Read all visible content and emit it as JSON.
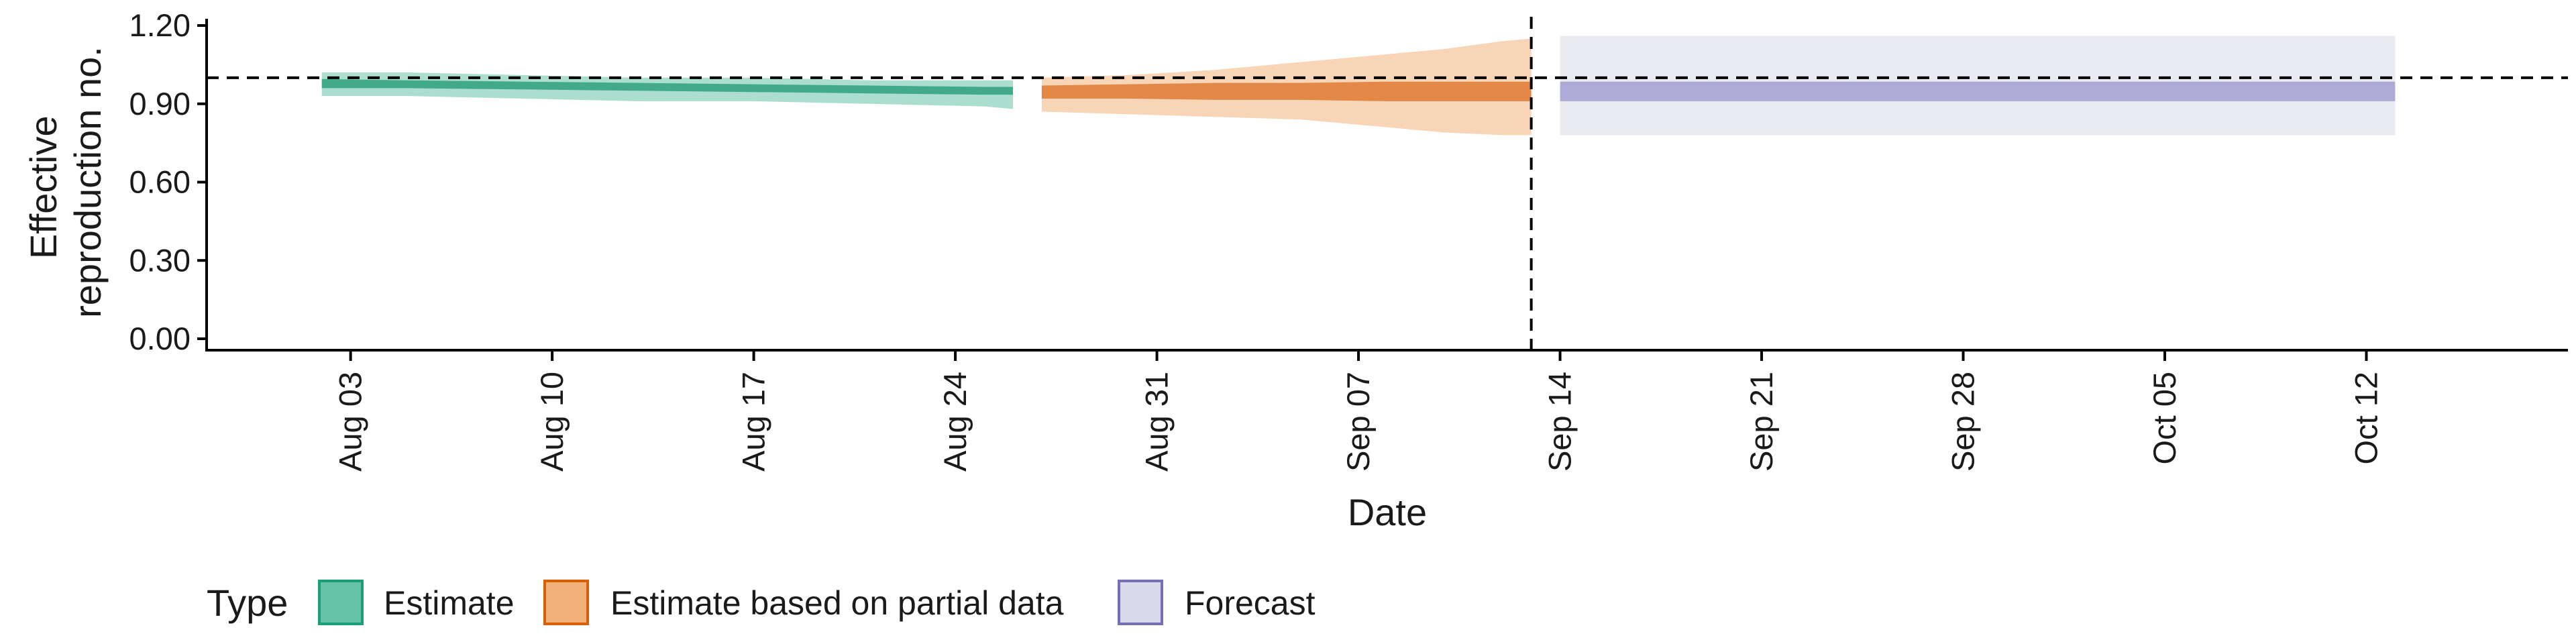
{
  "chart_data": {
    "type": "area",
    "xlabel": "Date",
    "ylabel_lines": [
      "Effective",
      "reproduction no."
    ],
    "ylim": [
      0.0,
      1.2
    ],
    "y_ticks": [
      "0.00",
      "0.30",
      "0.60",
      "0.90",
      "1.20"
    ],
    "xlim": [
      "2021-07-29",
      "2021-10-19"
    ],
    "x_ticks": [
      {
        "date": "2021-08-03",
        "label": "Aug 03"
      },
      {
        "date": "2021-08-10",
        "label": "Aug 10"
      },
      {
        "date": "2021-08-17",
        "label": "Aug 17"
      },
      {
        "date": "2021-08-24",
        "label": "Aug 24"
      },
      {
        "date": "2021-08-31",
        "label": "Aug 31"
      },
      {
        "date": "2021-09-07",
        "label": "Sep 07"
      },
      {
        "date": "2021-09-14",
        "label": "Sep 14"
      },
      {
        "date": "2021-09-21",
        "label": "Sep 21"
      },
      {
        "date": "2021-09-28",
        "label": "Sep 28"
      },
      {
        "date": "2021-10-05",
        "label": "Oct 05"
      },
      {
        "date": "2021-10-12",
        "label": "Oct 12"
      }
    ],
    "reference_line_y": 1.0,
    "forecast_start_date": "2021-09-13",
    "grid": false,
    "legend_position": "bottom",
    "legend_title": "Type",
    "series": [
      {
        "name": "Estimate",
        "fill": "#66c2a5",
        "dark": "#36a382",
        "border": "#1b9e77",
        "dates": [
          "2021-08-02",
          "2021-08-05",
          "2021-08-09",
          "2021-08-13",
          "2021-08-17",
          "2021-08-21",
          "2021-08-25",
          "2021-08-26"
        ],
        "outer_lower": [
          0.93,
          0.93,
          0.92,
          0.91,
          0.91,
          0.9,
          0.89,
          0.88
        ],
        "outer_upper": [
          1.02,
          1.02,
          1.01,
          1.0,
          1.0,
          0.99,
          0.99,
          0.99
        ],
        "inner_lower": [
          0.96,
          0.96,
          0.955,
          0.95,
          0.945,
          0.94,
          0.935,
          0.935
        ],
        "inner_upper": [
          0.995,
          0.99,
          0.985,
          0.98,
          0.975,
          0.97,
          0.965,
          0.965
        ]
      },
      {
        "name": "Estimate based on partial data",
        "fill": "#f0b27a",
        "dark": "#e0803a",
        "border": "#d95f02",
        "dates": [
          "2021-08-27",
          "2021-08-30",
          "2021-09-02",
          "2021-09-05",
          "2021-09-08",
          "2021-09-10",
          "2021-09-12",
          "2021-09-13"
        ],
        "outer_lower": [
          0.87,
          0.86,
          0.85,
          0.84,
          0.81,
          0.79,
          0.78,
          0.78
        ],
        "outer_upper": [
          1.0,
          1.01,
          1.03,
          1.06,
          1.09,
          1.11,
          1.14,
          1.15
        ],
        "inner_lower": [
          0.92,
          0.92,
          0.915,
          0.915,
          0.91,
          0.91,
          0.91,
          0.91
        ],
        "inner_upper": [
          0.97,
          0.975,
          0.98,
          0.98,
          0.985,
          0.985,
          0.985,
          0.985
        ]
      },
      {
        "name": "Forecast",
        "fill": "#d9d9ea",
        "dark": "#a6a3d2",
        "border": "#7570b3",
        "dates": [
          "2021-09-14",
          "2021-10-13"
        ],
        "outer_lower": [
          0.78,
          0.78
        ],
        "outer_upper": [
          1.16,
          1.16
        ],
        "inner_lower": [
          0.91,
          0.91
        ],
        "inner_upper": [
          0.985,
          0.985
        ]
      }
    ]
  }
}
